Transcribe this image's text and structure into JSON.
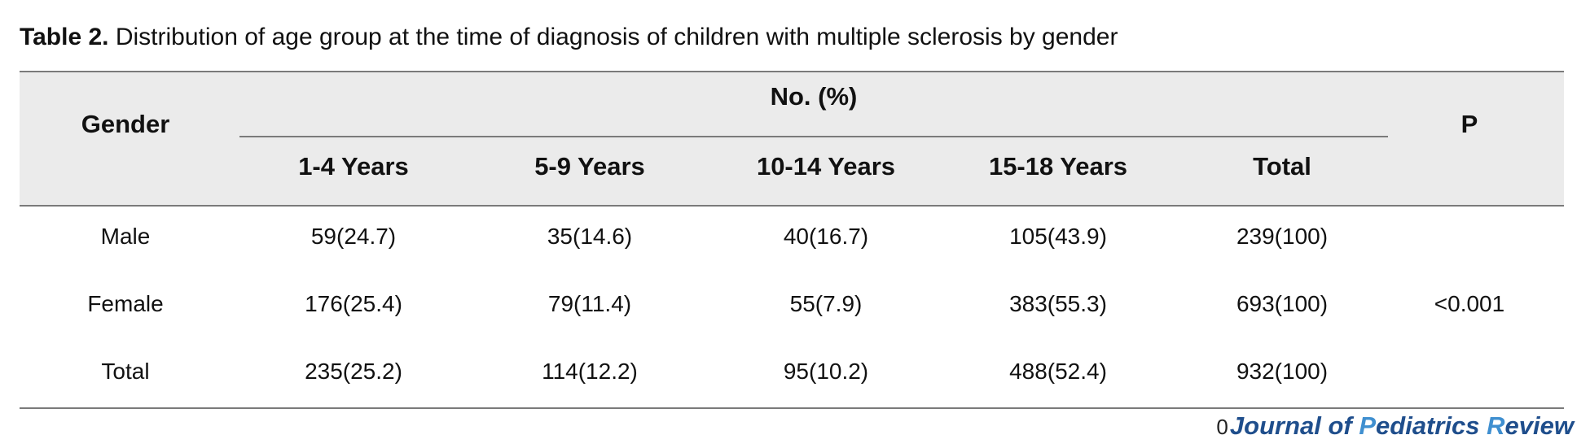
{
  "caption": {
    "label": "Table 2.",
    "text": "Distribution of age group at the time of diagnosis of children with multiple sclerosis by gender"
  },
  "table": {
    "group_header": "No. (%)",
    "row_header": "Gender",
    "p_header": "P",
    "columns": [
      "1-4 Years",
      "5-9 Years",
      "10-14 Years",
      "15-18 Years",
      "Total"
    ],
    "rows": [
      {
        "label": "Male",
        "cells": [
          "59(24.7)",
          "35(14.6)",
          "40(16.7)",
          "105(43.9)",
          "239(100)"
        ]
      },
      {
        "label": "Female",
        "cells": [
          "176(25.4)",
          "79(11.4)",
          "55(7.9)",
          "383(55.3)",
          "693(100)"
        ]
      },
      {
        "label": "Total",
        "cells": [
          "235(25.2)",
          "114(12.2)",
          "95(10.2)",
          "488(52.4)",
          "932(100)"
        ]
      }
    ],
    "p_value": "<0.001"
  },
  "footer": {
    "page_number": "0",
    "journal_part1": "Journal of ",
    "journal_p": "P",
    "journal_part2": "ediatrics ",
    "journal_r": "R",
    "journal_part3": "eview"
  }
}
